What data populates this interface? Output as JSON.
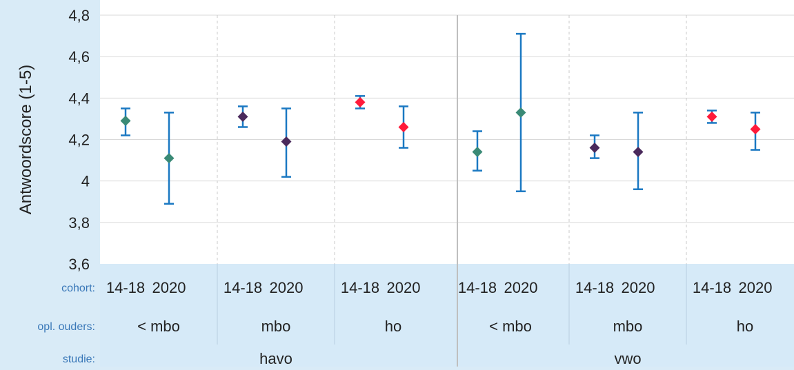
{
  "chart_data": {
    "type": "scatter",
    "ylabel": "Antwoordscore (1-5)",
    "ylim": [
      3.6,
      4.8
    ],
    "yticks": [
      "3,6",
      "3,8",
      "4",
      "4,2",
      "4,4",
      "4,6",
      "4,8"
    ],
    "grid": true,
    "row_labels": {
      "cohort": "cohort:",
      "ouders": "opl. ouders:",
      "studie": "studie:"
    },
    "studie_groups": [
      {
        "label": "havo",
        "span": 6
      },
      {
        "label": "vwo",
        "span": 6
      }
    ],
    "ouders_groups": [
      {
        "label": "< mbo",
        "span": 2
      },
      {
        "label": "mbo",
        "span": 2
      },
      {
        "label": "ho",
        "span": 2
      },
      {
        "label": "< mbo",
        "span": 2
      },
      {
        "label": "mbo",
        "span": 2
      },
      {
        "label": "ho",
        "span": 2
      }
    ],
    "points": [
      {
        "cohort": "14-18",
        "y": 4.29,
        "low": 4.22,
        "high": 4.35,
        "color": "#3a8a76"
      },
      {
        "cohort": "2020",
        "y": 4.11,
        "low": 3.89,
        "high": 4.33,
        "color": "#3a8a76"
      },
      {
        "cohort": "14-18",
        "y": 4.31,
        "low": 4.26,
        "high": 4.36,
        "color": "#4a2a5c"
      },
      {
        "cohort": "2020",
        "y": 4.19,
        "low": 4.02,
        "high": 4.35,
        "color": "#4a2a5c"
      },
      {
        "cohort": "14-18",
        "y": 4.38,
        "low": 4.35,
        "high": 4.41,
        "color": "#ff1a3a"
      },
      {
        "cohort": "2020",
        "y": 4.26,
        "low": 4.16,
        "high": 4.36,
        "color": "#ff1a3a"
      },
      {
        "cohort": "14-18",
        "y": 4.14,
        "low": 4.05,
        "high": 4.24,
        "color": "#3a8a76"
      },
      {
        "cohort": "2020",
        "y": 4.33,
        "low": 3.95,
        "high": 4.71,
        "color": "#3a8a76"
      },
      {
        "cohort": "14-18",
        "y": 4.16,
        "low": 4.11,
        "high": 4.22,
        "color": "#4a2a5c"
      },
      {
        "cohort": "2020",
        "y": 4.14,
        "low": 3.96,
        "high": 4.33,
        "color": "#4a2a5c"
      },
      {
        "cohort": "14-18",
        "y": 4.31,
        "low": 4.28,
        "high": 4.34,
        "color": "#ff1a3a"
      },
      {
        "cohort": "2020",
        "y": 4.25,
        "low": 4.15,
        "high": 4.33,
        "color": "#ff1a3a"
      }
    ],
    "errorbar_color": "#1a78c2",
    "row_label_color": "#3a78b8"
  }
}
